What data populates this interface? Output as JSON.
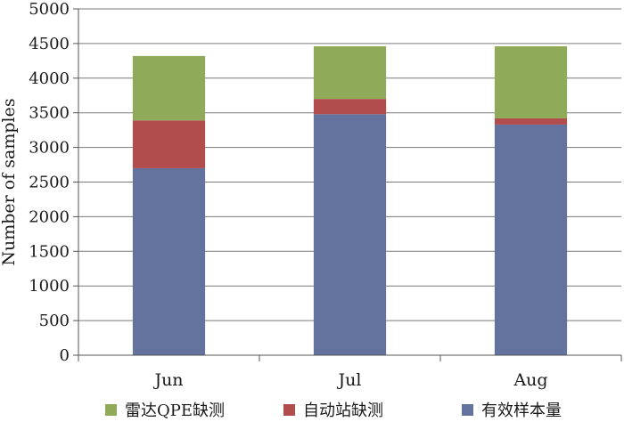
{
  "chart_data": {
    "type": "bar",
    "stacked": true,
    "title": "",
    "xlabel": "",
    "ylabel": "Number of samples",
    "ylim": [
      0,
      5000
    ],
    "yticks": [
      0,
      500,
      1000,
      1500,
      2000,
      2500,
      3000,
      3500,
      4000,
      4500,
      5000
    ],
    "grid": true,
    "legend_position": "bottom",
    "categories": [
      "Jun",
      "Jul",
      "Aug"
    ],
    "series": [
      {
        "name": "有效样本量",
        "color": "#64739e",
        "values": [
          2700,
          3480,
          3330
        ]
      },
      {
        "name": "自动站缺测",
        "color": "#b24d4d",
        "values": [
          690,
          220,
          90
        ]
      },
      {
        "name": "雷达QPE缺测",
        "color": "#8faa58",
        "values": [
          930,
          760,
          1040
        ]
      }
    ],
    "legend_order": [
      2,
      1,
      0
    ]
  }
}
